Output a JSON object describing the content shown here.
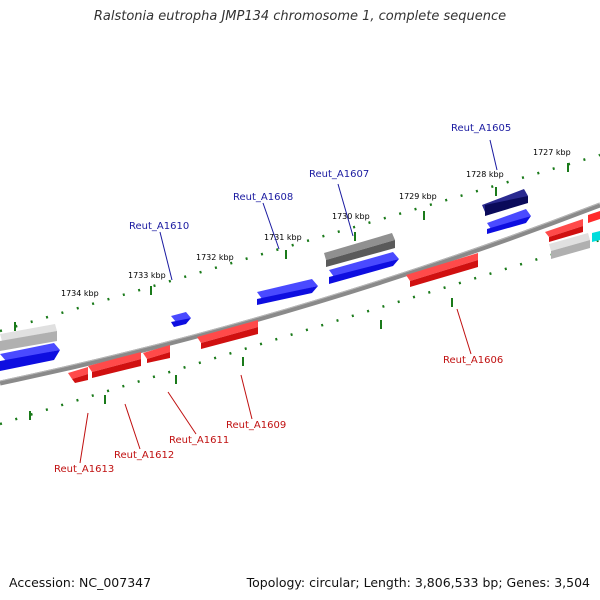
{
  "title": "Ralstonia eutropha JMP134 chromosome 1, complete sequence",
  "footer": {
    "accession": "Accession: NC_007347",
    "summary": "Topology: circular; Length: 3,806,533 bp; Genes: 3,504"
  },
  "colors": {
    "forward": "#1010e8",
    "reverse": "#e81010",
    "gray": "#a8a8a8",
    "darkgray": "#606060",
    "navy": "#101070",
    "cyan": "#00e0e0",
    "tick_green": "#1a7a1a",
    "label_blue": "#1a1aa0",
    "label_red": "#c01010",
    "backbone": "#808080"
  },
  "scale_labels": [
    "1727 kbp",
    "1728 kbp",
    "1729 kbp",
    "1730 kbp",
    "1731 kbp",
    "1732 kbp",
    "1733 kbp",
    "1734 kbp"
  ],
  "gene_labels_top": [
    "Reut_A1605",
    "Reut_A1607",
    "Reut_A1608",
    "Reut_A1610"
  ],
  "gene_labels_bottom": [
    "Reut_A1606",
    "Reut_A1609",
    "Reut_A1611",
    "Reut_A1612",
    "Reut_A1613"
  ]
}
